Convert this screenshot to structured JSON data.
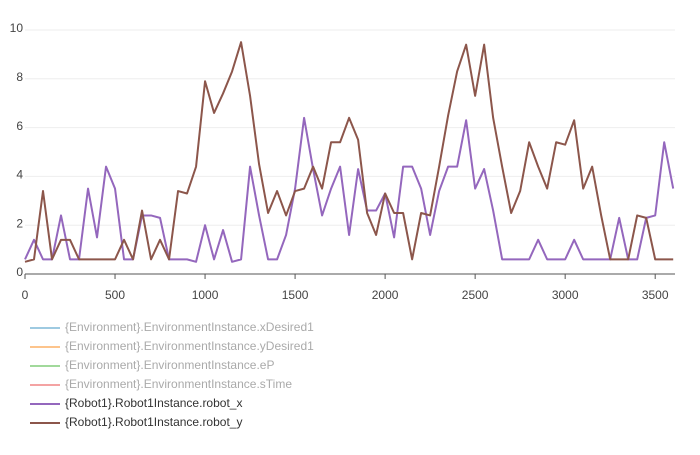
{
  "chart_data": {
    "type": "line",
    "x": [
      0,
      50,
      100,
      150,
      200,
      250,
      300,
      350,
      400,
      450,
      500,
      550,
      600,
      650,
      700,
      750,
      800,
      850,
      900,
      950,
      1000,
      1050,
      1100,
      1150,
      1200,
      1250,
      1300,
      1350,
      1400,
      1450,
      1500,
      1550,
      1600,
      1650,
      1700,
      1750,
      1800,
      1850,
      1900,
      1950,
      2000,
      2050,
      2100,
      2150,
      2200,
      2250,
      2300,
      2350,
      2400,
      2450,
      2500,
      2550,
      2600,
      2650,
      2700,
      2750,
      2800,
      2850,
      2900,
      2950,
      3000,
      3050,
      3100,
      3150,
      3200,
      3250,
      3300,
      3350,
      3400,
      3450,
      3500,
      3550,
      3600
    ],
    "series": [
      {
        "name": "{Environment}.EnvironmentInstance.xDesired1",
        "color": "#9ecae1",
        "visible": false
      },
      {
        "name": "{Environment}.EnvironmentInstance.yDesired1",
        "color": "#fdc48c",
        "visible": false
      },
      {
        "name": "{Environment}.EnvironmentInstance.eP",
        "color": "#a1d99b",
        "visible": false
      },
      {
        "name": "{Environment}.EnvironmentInstance.sTime",
        "color": "#f4a3a3",
        "visible": false
      },
      {
        "name": "{Robot1}.Robot1Instance.robot_x",
        "color": "#9467bd",
        "visible": true,
        "values": [
          0.6,
          1.4,
          0.6,
          0.6,
          2.4,
          0.6,
          0.6,
          3.5,
          1.5,
          4.4,
          3.5,
          0.6,
          0.6,
          2.4,
          2.4,
          2.3,
          0.6,
          0.6,
          0.6,
          0.5,
          2.0,
          0.6,
          1.8,
          0.5,
          0.6,
          4.4,
          2.4,
          0.6,
          0.6,
          1.6,
          3.5,
          6.4,
          4.3,
          2.4,
          3.5,
          4.4,
          1.6,
          4.3,
          2.6,
          2.6,
          3.3,
          1.5,
          4.4,
          4.4,
          3.5,
          1.6,
          3.4,
          4.4,
          4.4,
          6.3,
          3.5,
          4.3,
          2.6,
          0.6,
          0.6,
          0.6,
          0.6,
          1.4,
          0.6,
          0.6,
          0.6,
          1.4,
          0.6,
          0.6,
          0.6,
          0.6,
          2.3,
          0.6,
          0.6,
          2.3,
          2.4,
          5.4,
          3.5
        ]
      },
      {
        "name": "{Robot1}.Robot1Instance.robot_y",
        "color": "#8c564b",
        "visible": true,
        "values": [
          0.5,
          0.6,
          3.4,
          0.6,
          1.4,
          1.4,
          0.6,
          0.6,
          0.6,
          0.6,
          0.6,
          1.4,
          0.6,
          2.6,
          0.6,
          1.4,
          0.6,
          3.4,
          3.3,
          4.4,
          7.9,
          6.6,
          7.4,
          8.3,
          9.5,
          7.3,
          4.5,
          2.5,
          3.4,
          2.4,
          3.4,
          3.5,
          4.4,
          3.5,
          5.4,
          5.4,
          6.4,
          5.5,
          2.5,
          1.6,
          3.3,
          2.5,
          2.5,
          0.6,
          2.5,
          2.4,
          4.4,
          6.5,
          8.3,
          9.4,
          7.3,
          9.4,
          6.4,
          4.4,
          2.5,
          3.4,
          5.4,
          4.4,
          3.5,
          5.4,
          5.3,
          6.3,
          3.5,
          4.4,
          2.4,
          0.6,
          0.6,
          0.6,
          2.4,
          2.3,
          0.6,
          0.6,
          0.6
        ]
      }
    ],
    "xlim": [
      0,
      3610
    ],
    "ylim": [
      0,
      10
    ],
    "xticks": [
      0,
      500,
      1000,
      1500,
      2000,
      2500,
      3000,
      3500
    ],
    "yticks": [
      0,
      2,
      4,
      6,
      8,
      10
    ],
    "grid": true,
    "legend": "bottom"
  }
}
